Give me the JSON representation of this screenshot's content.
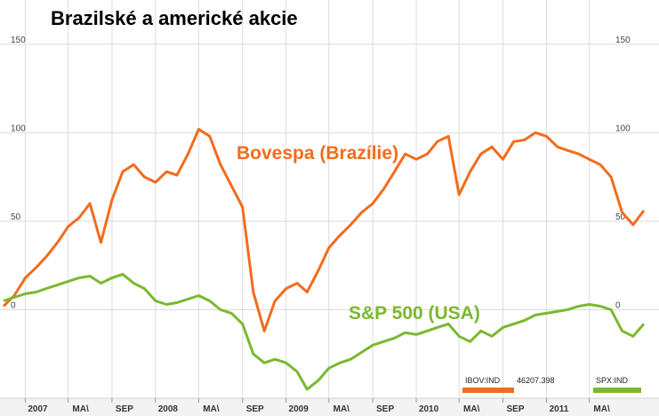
{
  "title": "Brazilské a americké akcie",
  "legend": {
    "bovespa_code": "IBOV:IND",
    "bovespa_value": "46207.398",
    "spx_code": "SPX:IND"
  },
  "colors": {
    "bovespa": "#f26c1c",
    "spx": "#7cb82e",
    "grid": "#dcdcdc"
  },
  "chart_data": {
    "type": "line",
    "title": "Brazilské a americké akcie",
    "ylim": [
      -50,
      175
    ],
    "yticks": [
      150,
      100,
      50,
      0
    ],
    "ytick_labels": [
      "150",
      "100",
      "50",
      "0"
    ],
    "xlim": [
      "2006-11-01",
      "2011-10-31"
    ],
    "xticks": [
      "2007-01-01",
      "2007-05-01",
      "2007-09-01",
      "2008-01-01",
      "2008-05-01",
      "2008-09-01",
      "2009-01-01",
      "2009-05-01",
      "2009-09-01",
      "2010-01-01",
      "2010-05-01",
      "2010-09-01",
      "2011-01-01",
      "2011-05-01"
    ],
    "xtick_labels": [
      "2007",
      "MA\\",
      "SEP",
      "2008",
      "MA\\",
      "SEP",
      "2009",
      "MA\\",
      "SEP",
      "2010",
      "MA\\",
      "SEP",
      "2011",
      "MA\\"
    ],
    "grid": true,
    "series": [
      {
        "name": "Bovespa (Brazílie)",
        "color": "#f26c1c",
        "x": [
          "2006-11-01",
          "2006-12-01",
          "2007-01-01",
          "2007-02-01",
          "2007-03-01",
          "2007-04-01",
          "2007-05-01",
          "2007-06-01",
          "2007-07-01",
          "2007-08-01",
          "2007-09-01",
          "2007-10-01",
          "2007-11-01",
          "2007-12-01",
          "2008-01-01",
          "2008-02-01",
          "2008-03-01",
          "2008-04-01",
          "2008-05-01",
          "2008-06-01",
          "2008-07-01",
          "2008-08-01",
          "2008-09-01",
          "2008-10-01",
          "2008-11-01",
          "2008-12-01",
          "2009-01-01",
          "2009-02-01",
          "2009-03-01",
          "2009-04-01",
          "2009-05-01",
          "2009-06-01",
          "2009-07-01",
          "2009-08-01",
          "2009-09-01",
          "2009-10-01",
          "2009-11-01",
          "2009-12-01",
          "2010-01-01",
          "2010-02-01",
          "2010-03-01",
          "2010-04-01",
          "2010-05-01",
          "2010-06-01",
          "2010-07-01",
          "2010-08-01",
          "2010-09-01",
          "2010-10-01",
          "2010-11-01",
          "2010-12-01",
          "2011-01-01",
          "2011-02-01",
          "2011-03-01",
          "2011-04-01",
          "2011-05-01",
          "2011-06-01",
          "2011-07-01",
          "2011-08-01",
          "2011-09-01",
          "2011-10-01"
        ],
        "y": [
          2,
          8,
          18,
          24,
          30,
          38,
          47,
          52,
          60,
          38,
          62,
          78,
          82,
          75,
          72,
          78,
          76,
          88,
          102,
          98,
          82,
          70,
          58,
          10,
          -12,
          5,
          12,
          15,
          10,
          22,
          35,
          42,
          48,
          55,
          60,
          68,
          78,
          88,
          85,
          88,
          95,
          98,
          65,
          78,
          88,
          92,
          85,
          95,
          96,
          100,
          98,
          92,
          90,
          88,
          85,
          82,
          75,
          55,
          48,
          56
        ]
      },
      {
        "name": "S&P 500 (USA)",
        "color": "#7cb82e",
        "x": [
          "2006-11-01",
          "2006-12-01",
          "2007-01-01",
          "2007-02-01",
          "2007-03-01",
          "2007-04-01",
          "2007-05-01",
          "2007-06-01",
          "2007-07-01",
          "2007-08-01",
          "2007-09-01",
          "2007-10-01",
          "2007-11-01",
          "2007-12-01",
          "2008-01-01",
          "2008-02-01",
          "2008-03-01",
          "2008-04-01",
          "2008-05-01",
          "2008-06-01",
          "2008-07-01",
          "2008-08-01",
          "2008-09-01",
          "2008-10-01",
          "2008-11-01",
          "2008-12-01",
          "2009-01-01",
          "2009-02-01",
          "2009-03-01",
          "2009-04-01",
          "2009-05-01",
          "2009-06-01",
          "2009-07-01",
          "2009-08-01",
          "2009-09-01",
          "2009-10-01",
          "2009-11-01",
          "2009-12-01",
          "2010-01-01",
          "2010-02-01",
          "2010-03-01",
          "2010-04-01",
          "2010-05-01",
          "2010-06-01",
          "2010-07-01",
          "2010-08-01",
          "2010-09-01",
          "2010-10-01",
          "2010-11-01",
          "2010-12-01",
          "2011-01-01",
          "2011-02-01",
          "2011-03-01",
          "2011-04-01",
          "2011-05-01",
          "2011-06-01",
          "2011-07-01",
          "2011-08-01",
          "2011-09-01",
          "2011-10-01"
        ],
        "y": [
          5,
          7,
          9,
          10,
          12,
          14,
          16,
          18,
          19,
          15,
          18,
          20,
          15,
          12,
          5,
          3,
          4,
          6,
          8,
          5,
          0,
          -2,
          -8,
          -25,
          -30,
          -28,
          -30,
          -35,
          -45,
          -40,
          -33,
          -30,
          -28,
          -24,
          -20,
          -18,
          -16,
          -13,
          -14,
          -12,
          -10,
          -8,
          -15,
          -18,
          -12,
          -15,
          -10,
          -8,
          -6,
          -3,
          -2,
          -1,
          0,
          2,
          3,
          2,
          0,
          -12,
          -15,
          -8
        ]
      }
    ]
  }
}
